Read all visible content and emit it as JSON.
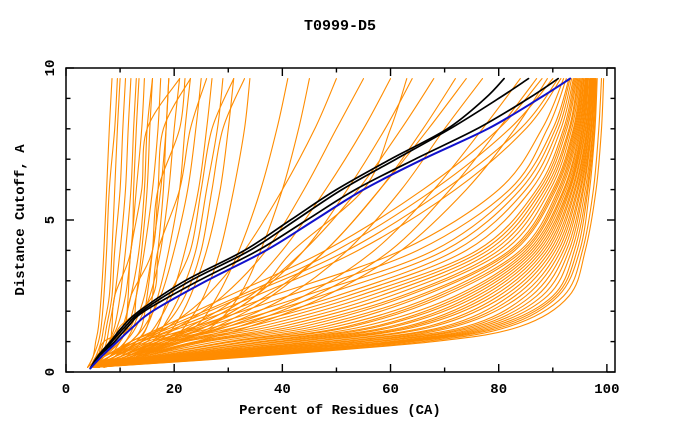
{
  "window": {
    "title": "T0999-D5"
  },
  "chart_data": {
    "type": "line",
    "title": "T0999-D5",
    "xlabel": "Percent of Residues (CA)",
    "ylabel": "Distance Cutoff, A",
    "xlim": [
      0,
      101.5
    ],
    "ylim": [
      0,
      10
    ],
    "grid": false,
    "legend": "none",
    "x_major_ticks": [
      0,
      20,
      40,
      60,
      80,
      100
    ],
    "x_minor_ticks": [
      10,
      30,
      50,
      70,
      90
    ],
    "y_major_ticks": [
      0,
      5,
      10
    ],
    "y_minor_ticks": [
      1,
      2,
      3,
      4,
      6,
      7,
      8,
      9
    ],
    "colors": {
      "background": "#ffffff",
      "axis": "#000000",
      "orange": "#ff8c00",
      "black": "#000000",
      "blue": "#1111cc"
    },
    "series_groups": {
      "orange_models": {
        "color_key": "orange",
        "stroke_width": 1.1,
        "d_grid": [
          0.15,
          0.5,
          1,
          1.5,
          2.5,
          4,
          6,
          8,
          9.65
        ],
        "curves_percent": [
          [
            4,
            5,
            5.5,
            6,
            6.5,
            7,
            7.5,
            8,
            8.5
          ],
          [
            4,
            5,
            6,
            6.5,
            7,
            7.5,
            8,
            9,
            9.5
          ],
          [
            4.5,
            5.5,
            6.5,
            7,
            8,
            8.5,
            9,
            9.5,
            10
          ],
          [
            4.5,
            6,
            7,
            7.5,
            8.5,
            9,
            10,
            10.5,
            11
          ],
          [
            5,
            6.5,
            7.5,
            8,
            9,
            10,
            11,
            11.5,
            12
          ],
          [
            5,
            7,
            8,
            9,
            10,
            11,
            12,
            12.5,
            13
          ],
          [
            4,
            6,
            8,
            9.5,
            11,
            12,
            13,
            14,
            14.5
          ],
          [
            5,
            7,
            9,
            10.5,
            12,
            13.5,
            14.5,
            15,
            16
          ],
          [
            5,
            8,
            10,
            11.5,
            13,
            14.5,
            16,
            17,
            17.5
          ],
          [
            6,
            9,
            11,
            12.5,
            14.5,
            16,
            17.5,
            18.5,
            19
          ],
          [
            5,
            8,
            11,
            13,
            15.5,
            17.5,
            19,
            20,
            21
          ],
          [
            6,
            10,
            13,
            15,
            17,
            19,
            21,
            22,
            23
          ],
          [
            5,
            9,
            12,
            14.5,
            17.5,
            20,
            22.5,
            24,
            25
          ],
          [
            6,
            11,
            14,
            16.5,
            19.5,
            22,
            24.5,
            26,
            27
          ],
          [
            6,
            12,
            16,
            18,
            21,
            24,
            26,
            28,
            29
          ],
          [
            7,
            13,
            17,
            20,
            23,
            26,
            28.5,
            30,
            31
          ],
          [
            7,
            14,
            19,
            22,
            25.5,
            28.5,
            31,
            33,
            34
          ],
          [
            5,
            7,
            9,
            10,
            16,
            17,
            18,
            18.5,
            19
          ],
          [
            5,
            6,
            7,
            12,
            13,
            14,
            15,
            15.5,
            16
          ],
          [
            4.5,
            5.5,
            8,
            8.5,
            9,
            12,
            12.5,
            13,
            13.5
          ],
          [
            5,
            6.5,
            10,
            11,
            11.5,
            12,
            14,
            15,
            21
          ],
          [
            6,
            8,
            12,
            14,
            15,
            16,
            17,
            21,
            22
          ],
          [
            4.5,
            7,
            10,
            11,
            12,
            16,
            17,
            18,
            23
          ],
          [
            5.5,
            9,
            13,
            15,
            16,
            17,
            21,
            23,
            26
          ],
          [
            6,
            10,
            15,
            17,
            19,
            23,
            25,
            27,
            31
          ],
          [
            5,
            8,
            12,
            18,
            22,
            25,
            27,
            29,
            33
          ],
          [
            6,
            12,
            18,
            24,
            28,
            32,
            36,
            39,
            41
          ],
          [
            6,
            13,
            20,
            27,
            32,
            36,
            40,
            43,
            45
          ],
          [
            5,
            9,
            14,
            19,
            26,
            33,
            40,
            46,
            50
          ],
          [
            5,
            10,
            16,
            21,
            29,
            37,
            44,
            50,
            55
          ],
          [
            6,
            11,
            17,
            23,
            32,
            40,
            48,
            55,
            60
          ],
          [
            6,
            12,
            19,
            26,
            35,
            44,
            52,
            59,
            64
          ],
          [
            5,
            10,
            17,
            24,
            34,
            44,
            54,
            62,
            68
          ],
          [
            6,
            13,
            21,
            28,
            38,
            48,
            58,
            66,
            72
          ],
          [
            5,
            11,
            18,
            26,
            37,
            48,
            58,
            67,
            74
          ],
          [
            6,
            12,
            20,
            29,
            41,
            52,
            62,
            70,
            77
          ],
          [
            5,
            12,
            20,
            30,
            44,
            57,
            68,
            77,
            84
          ],
          [
            5,
            13,
            22,
            32,
            46,
            60,
            71,
            80,
            87
          ],
          [
            6,
            14,
            24,
            34,
            48,
            62,
            74,
            83,
            89
          ],
          [
            5,
            9,
            13,
            25,
            35,
            42,
            55,
            60,
            63
          ],
          [
            4.5,
            8,
            14,
            22,
            38,
            62,
            80,
            88,
            92
          ],
          [
            4.5,
            9,
            15,
            24,
            41,
            65,
            82,
            89,
            92.5
          ],
          [
            5,
            9,
            16,
            26,
            44,
            68,
            83,
            90,
            93
          ],
          [
            5,
            10,
            17,
            28,
            47,
            70,
            84,
            90.5,
            93.2
          ],
          [
            5,
            10,
            18,
            30,
            50,
            72,
            85,
            91,
            93.5
          ],
          [
            5,
            11,
            19,
            32,
            52,
            74,
            86,
            91.5,
            93.8
          ],
          [
            5,
            11,
            20,
            34,
            54,
            76,
            87,
            92,
            94
          ],
          [
            5,
            12,
            21,
            36,
            56,
            77,
            87.5,
            92.3,
            94.2
          ],
          [
            5,
            12,
            22,
            38,
            58,
            78,
            88,
            92.6,
            94.4
          ],
          [
            5,
            13,
            24,
            40,
            60,
            79,
            88.5,
            93,
            94.6
          ],
          [
            5,
            13,
            25,
            42,
            62,
            80,
            89,
            93.2,
            94.8
          ],
          [
            5,
            14,
            26,
            44,
            63,
            81,
            89.5,
            93.5,
            95
          ],
          [
            5,
            14,
            28,
            46,
            65,
            82,
            90,
            93.8,
            95.2
          ],
          [
            5,
            15,
            30,
            48,
            66,
            82.5,
            90.3,
            94,
            95.4
          ],
          [
            5,
            15,
            31,
            50,
            68,
            83,
            90.6,
            94.2,
            95.5
          ],
          [
            5,
            16,
            33,
            52,
            69,
            84,
            91,
            94.4,
            95.7
          ],
          [
            5,
            16,
            34,
            53,
            70,
            84.5,
            91.3,
            94.6,
            95.8
          ],
          [
            5,
            17,
            36,
            55,
            72,
            85,
            91.6,
            94.8,
            96
          ],
          [
            5,
            17,
            37,
            57,
            73,
            85.5,
            92,
            95,
            96.1
          ],
          [
            5,
            18,
            39,
            58,
            74,
            86,
            92.2,
            95.2,
            96.2
          ],
          [
            5,
            18,
            40,
            60,
            75,
            86.5,
            92.5,
            95.4,
            96.3
          ],
          [
            5,
            19,
            42,
            61,
            76,
            87,
            92.8,
            95.5,
            96.4
          ],
          [
            5,
            19,
            43,
            63,
            77,
            87.5,
            93,
            95.7,
            96.5
          ],
          [
            5,
            20,
            45,
            64,
            78,
            88,
            93.2,
            95.8,
            96.6
          ],
          [
            5,
            21,
            46,
            65,
            79,
            88.5,
            93.5,
            96,
            96.8
          ],
          [
            5,
            21,
            48,
            67,
            80,
            89,
            93.7,
            96.1,
            96.9
          ],
          [
            5,
            22,
            49,
            68,
            81,
            89.5,
            94,
            96.3,
            97
          ],
          [
            5,
            23,
            51,
            70,
            82,
            90,
            94.2,
            96.4,
            97.1
          ],
          [
            5,
            24,
            52,
            71,
            83,
            90.5,
            94.5,
            96.5,
            97.2
          ],
          [
            5,
            25,
            54,
            72,
            84,
            91,
            94.7,
            96.7,
            97.3
          ],
          [
            5,
            26,
            55,
            74,
            85,
            91.5,
            95,
            96.8,
            97.4
          ],
          [
            5,
            27,
            57,
            75,
            86,
            92,
            95.2,
            97,
            97.5
          ],
          [
            5,
            28,
            58,
            76,
            87,
            92.5,
            95.5,
            97.1,
            97.6
          ],
          [
            5,
            29,
            60,
            77,
            88,
            93,
            95.7,
            97.2,
            97.7
          ],
          [
            5,
            30,
            61,
            78,
            89,
            93.5,
            96,
            97.4,
            97.8
          ],
          [
            5,
            30,
            62,
            79,
            90,
            94,
            96.3,
            97.5,
            97.9
          ],
          [
            5,
            31,
            63,
            80,
            90.5,
            94.5,
            96.5,
            97.7,
            98
          ],
          [
            5,
            32,
            64,
            81,
            91,
            95,
            96.8,
            97.8,
            98.2
          ],
          [
            5,
            33,
            66,
            82,
            92,
            95.5,
            97.5,
            98.5,
            99
          ],
          [
            5,
            34,
            68,
            84,
            93,
            96,
            98,
            99,
            99.4
          ],
          [
            4.5,
            7,
            12,
            18,
            30,
            48,
            66,
            80,
            88
          ],
          [
            4.5,
            7,
            13,
            19,
            32,
            50,
            68,
            82,
            90
          ],
          [
            4.5,
            8,
            13,
            20,
            33,
            52,
            70,
            84,
            91
          ],
          [
            4.5,
            8,
            14,
            21,
            35,
            54,
            72,
            85,
            91.5
          ]
        ]
      },
      "black_models": {
        "color_key": "black",
        "stroke_width": 1.7,
        "d_grid": [
          0.12,
          0.5,
          1,
          1.5,
          2,
          3,
          4,
          5,
          6,
          7,
          8,
          9,
          9.65
        ],
        "curves_percent": [
          [
            4.5,
            5.8,
            8.2,
            10.5,
            13.5,
            22,
            33,
            41.5,
            50,
            60,
            70.5,
            77.5,
            81
          ],
          [
            4.5,
            6,
            8.5,
            11,
            14,
            23,
            34,
            42.5,
            51,
            61,
            71,
            80,
            85.5
          ],
          [
            4.5,
            6,
            9,
            11.5,
            14.5,
            24.5,
            35.5,
            44.5,
            53.5,
            64.5,
            76,
            85.5,
            91
          ]
        ]
      },
      "blue_models": {
        "color_key": "blue",
        "stroke_width": 2.0,
        "d_grid": [
          0.12,
          0.5,
          1,
          1.5,
          2,
          3,
          4,
          5,
          6,
          7,
          8,
          9,
          9.65
        ],
        "curves_percent": [
          [
            4.5,
            6.5,
            9.5,
            12.5,
            16,
            26,
            37,
            46,
            55,
            66,
            78,
            87.5,
            93.2
          ]
        ]
      }
    }
  }
}
